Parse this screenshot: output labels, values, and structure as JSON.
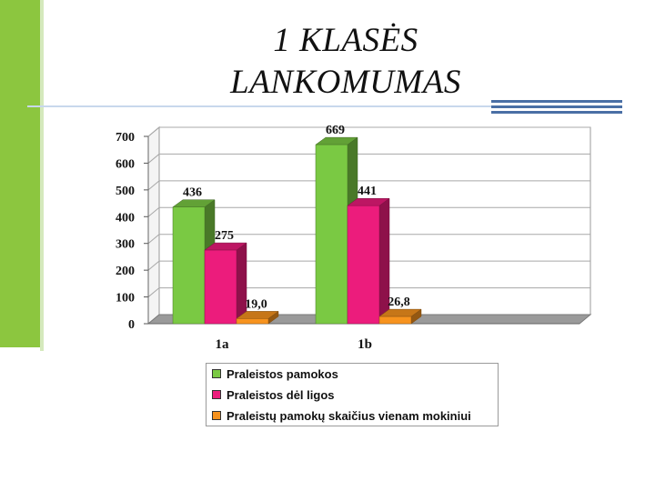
{
  "slide": {
    "title_line1": "1 KLASĖS",
    "title_line2": "LANKOMUMAS"
  },
  "colors": {
    "accent_green": "#8cc63f",
    "accent_blue": "#4a6fa5"
  },
  "chart_data": {
    "type": "bar",
    "style": "3d-clustered",
    "categories": [
      "1a",
      "1b"
    ],
    "series": [
      {
        "name": "Praleistos pamokos",
        "values": [
          436,
          669
        ],
        "labels": [
          "436",
          "669"
        ],
        "color": "#7ac943"
      },
      {
        "name": "Praleistos dėl ligos",
        "values": [
          275,
          441
        ],
        "labels": [
          "275",
          "441"
        ],
        "color": "#ec1c7c"
      },
      {
        "name": "Praleistų pamokų skaičius vienam mokiniui",
        "values": [
          19.0,
          26.8
        ],
        "labels": [
          "19,0",
          "26,8"
        ],
        "color": "#f7931e"
      }
    ],
    "ylim": [
      0,
      700
    ],
    "yticks": [
      0,
      100,
      200,
      300,
      400,
      500,
      600,
      700
    ],
    "grid": true,
    "legend_position": "bottom"
  }
}
